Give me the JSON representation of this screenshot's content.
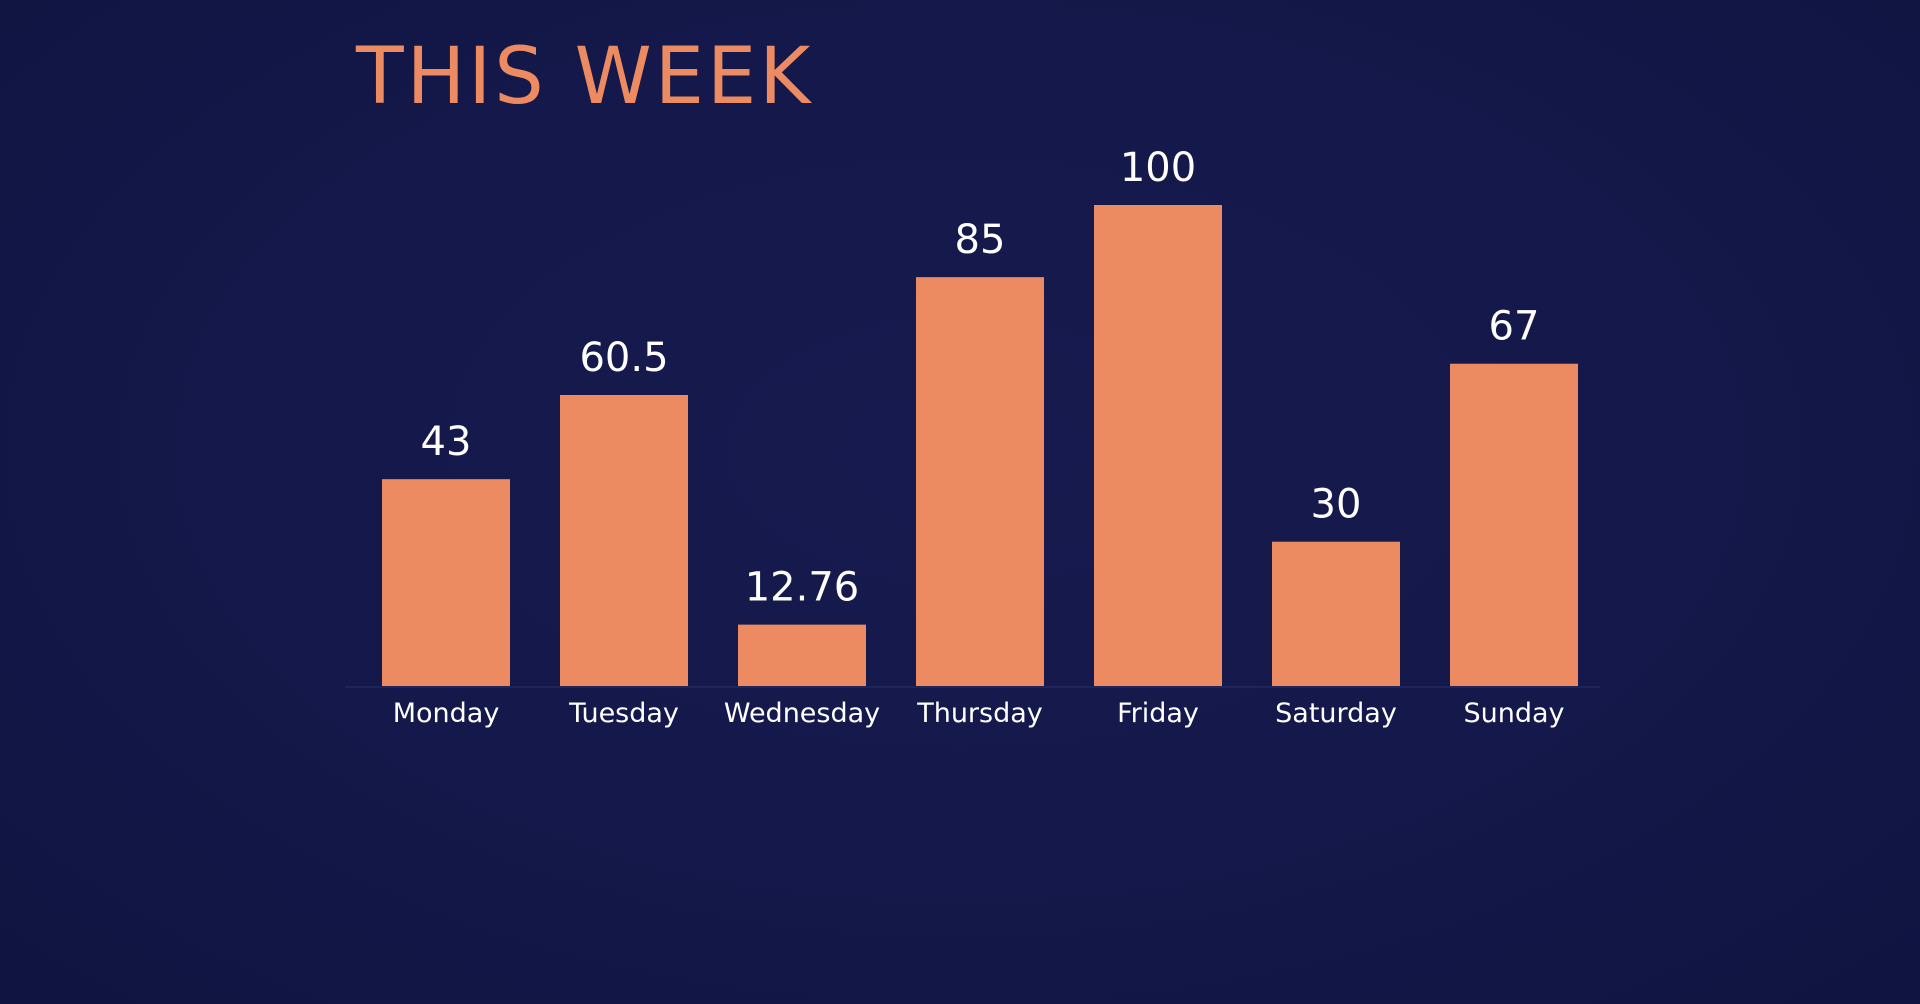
{
  "colors": {
    "background": "#14184a",
    "accent": "#ec8b62",
    "text": "#ffffff",
    "baseline": "#1f2558"
  },
  "chart_data": {
    "type": "bar",
    "title": "THIS WEEK",
    "categories": [
      "Monday",
      "Tuesday",
      "Wednesday",
      "Thursday",
      "Friday",
      "Saturday",
      "Sunday"
    ],
    "values": [
      43,
      60.5,
      12.76,
      85,
      100,
      30,
      67
    ],
    "data_labels": [
      "43",
      "60.5",
      "12.76",
      "85",
      "100",
      "30",
      "67"
    ],
    "xlabel": "",
    "ylabel": "",
    "ylim": [
      0,
      100
    ],
    "grid": false,
    "legend": "none"
  }
}
